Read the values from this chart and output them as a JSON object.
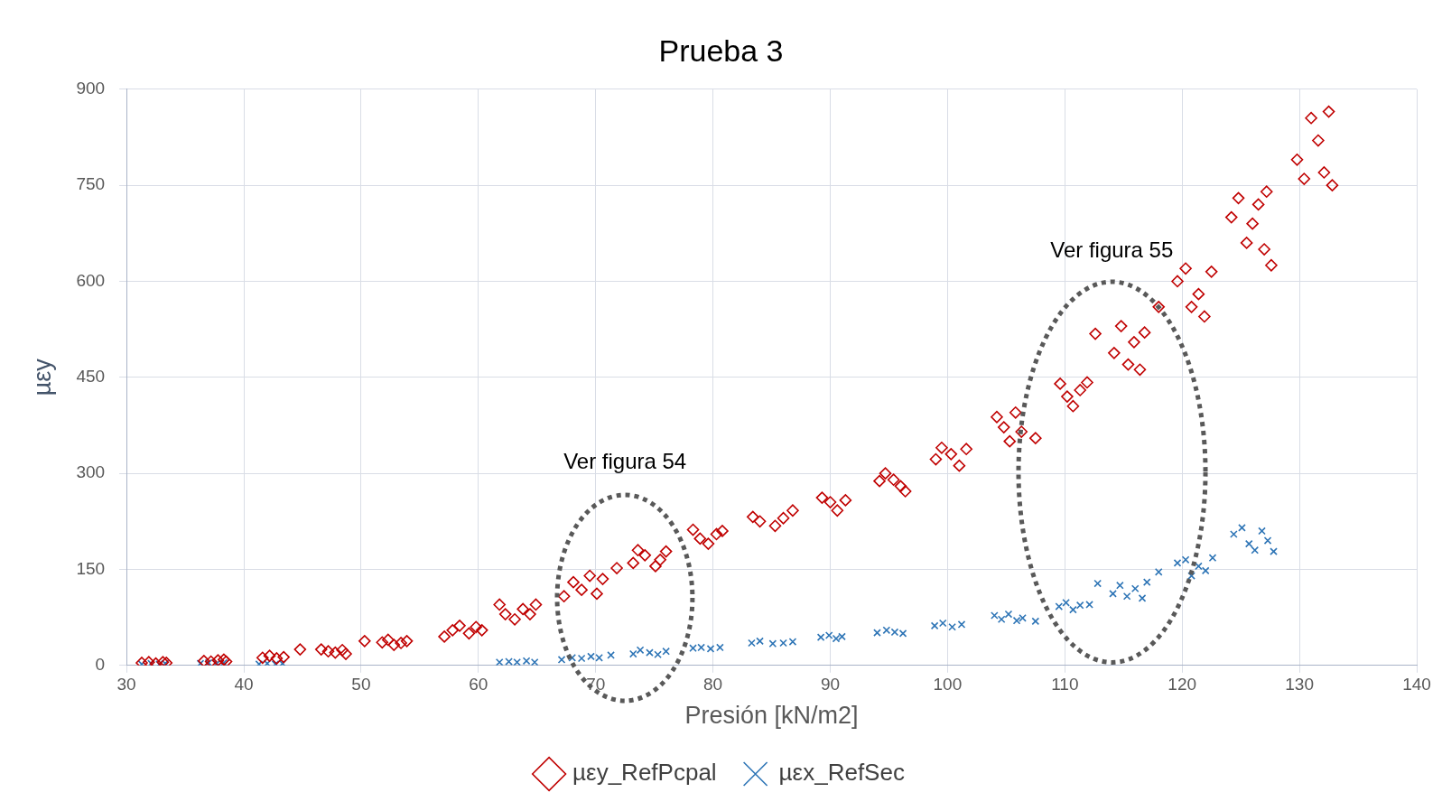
{
  "chart_data": {
    "type": "scatter",
    "title": "Prueba 3",
    "xlabel": "Presión [kN/m2]",
    "ylabel": "µεy",
    "xlim": [
      30,
      140
    ],
    "xticks": [
      30,
      40,
      50,
      60,
      70,
      80,
      90,
      100,
      110,
      120,
      130,
      140
    ],
    "ylim": [
      0,
      900
    ],
    "yticks": [
      0,
      150,
      300,
      450,
      600,
      750,
      900
    ],
    "grid": true,
    "legend": "bottom",
    "annotations": [
      "Ver figura 54",
      "Ver figura 55"
    ],
    "series": [
      {
        "name": "µεy_RefPcpal",
        "color": "#c00000",
        "marker": "diamond",
        "x": [
          31.3,
          31.9,
          32.5,
          33.1,
          33.4,
          36.6,
          37.2,
          37.8,
          38.3,
          38.5,
          41.6,
          42.2,
          42.8,
          43.4,
          44.8,
          46.6,
          47.2,
          47.8,
          48.4,
          48.7,
          50.3,
          51.8,
          52.3,
          52.8,
          53.4,
          53.9,
          57.1,
          57.8,
          58.4,
          59.2,
          59.8,
          60.3,
          61.8,
          62.3,
          63.1,
          63.8,
          64.4,
          64.9,
          67.3,
          68.1,
          68.8,
          69.5,
          70.1,
          70.6,
          71.8,
          73.2,
          73.6,
          74.2,
          75.1,
          75.5,
          76.0,
          78.3,
          78.9,
          79.6,
          80.3,
          80.8,
          83.4,
          84.0,
          85.3,
          86.0,
          86.8,
          89.3,
          90.0,
          90.6,
          91.3,
          94.2,
          94.7,
          95.4,
          96.0,
          96.4,
          99.0,
          99.5,
          100.3,
          101.0,
          101.6,
          104.2,
          104.8,
          105.3,
          105.8,
          106.3,
          107.5,
          109.6,
          110.2,
          110.7,
          111.3,
          111.9,
          112.6,
          114.2,
          114.8,
          115.4,
          115.9,
          116.4,
          116.8,
          118.0,
          119.6,
          120.3,
          120.8,
          121.4,
          121.9,
          122.5,
          124.2,
          124.8,
          125.5,
          126.0,
          126.5,
          127.0,
          127.6,
          127.2,
          129.8,
          130.4,
          131.0,
          131.6,
          132.1,
          132.5,
          132.8
        ],
        "values": [
          4,
          5,
          3,
          5,
          4,
          7,
          6,
          8,
          9,
          6,
          12,
          15,
          11,
          13,
          25,
          25,
          22,
          20,
          24,
          18,
          38,
          36,
          40,
          32,
          35,
          38,
          45,
          55,
          62,
          50,
          60,
          55,
          95,
          80,
          72,
          88,
          80,
          95,
          108,
          130,
          118,
          140,
          112,
          135,
          152,
          160,
          180,
          172,
          155,
          165,
          178,
          212,
          198,
          190,
          205,
          210,
          232,
          225,
          218,
          230,
          242,
          262,
          255,
          242,
          258,
          288,
          300,
          290,
          280,
          272,
          322,
          340,
          330,
          312,
          338,
          388,
          372,
          350,
          395,
          365,
          355,
          440,
          420,
          405,
          430,
          442,
          518,
          488,
          530,
          470,
          505,
          462,
          520,
          560,
          600,
          620,
          560,
          580,
          545,
          615,
          700,
          730,
          660,
          690,
          720,
          650,
          625,
          740,
          790,
          760,
          855,
          820,
          770,
          865,
          750
        ]
      },
      {
        "name": "µεx_RefSec",
        "color": "#2e75b6",
        "marker": "cross",
        "x": [
          31.3,
          32.1,
          32.8,
          33.3,
          36.3,
          37.0,
          37.7,
          38.3,
          41.3,
          42.0,
          42.7,
          43.3,
          61.8,
          62.6,
          63.3,
          64.1,
          64.8,
          67.1,
          68.0,
          68.8,
          69.6,
          70.3,
          71.3,
          73.2,
          73.8,
          74.6,
          75.3,
          76.0,
          78.3,
          79.0,
          79.8,
          80.6,
          83.3,
          84.0,
          85.1,
          86.0,
          86.8,
          89.2,
          89.9,
          90.5,
          91.0,
          94.0,
          94.8,
          95.5,
          96.2,
          98.9,
          99.6,
          100.4,
          101.2,
          104.0,
          104.6,
          105.2,
          105.9,
          106.4,
          107.5,
          109.5,
          110.1,
          110.7,
          111.3,
          112.1,
          112.8,
          114.1,
          114.7,
          115.3,
          116.0,
          116.6,
          117.0,
          118.0,
          119.6,
          120.3,
          120.8,
          121.4,
          122.0,
          122.6,
          124.4,
          125.1,
          125.7,
          126.2,
          126.8,
          127.3,
          127.8
        ],
        "values": [
          2,
          3,
          2,
          3,
          3,
          4,
          3,
          4,
          2,
          3,
          2,
          3,
          5,
          6,
          5,
          7,
          5,
          9,
          12,
          11,
          14,
          12,
          16,
          18,
          24,
          20,
          17,
          22,
          27,
          28,
          26,
          28,
          35,
          38,
          34,
          35,
          37,
          44,
          47,
          42,
          45,
          51,
          55,
          52,
          50,
          62,
          66,
          60,
          64,
          78,
          72,
          80,
          70,
          74,
          69,
          92,
          98,
          87,
          94,
          95,
          128,
          112,
          125,
          108,
          120,
          105,
          130,
          146,
          160,
          165,
          140,
          155,
          148,
          168,
          205,
          215,
          190,
          180,
          210,
          195,
          178
        ]
      }
    ]
  }
}
